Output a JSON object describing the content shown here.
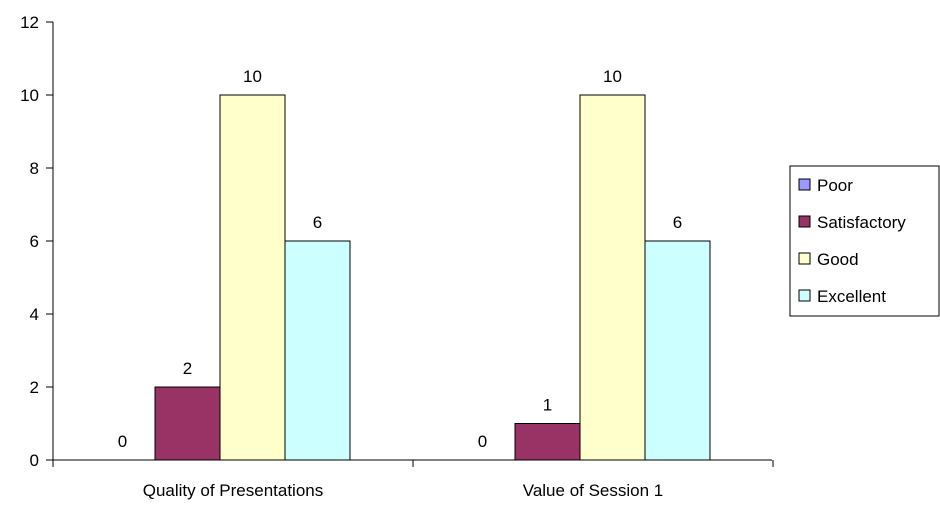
{
  "chart_data": {
    "type": "bar",
    "categories": [
      "Quality of Presentations",
      "Value of Session 1"
    ],
    "series": [
      {
        "name": "Poor",
        "values": [
          0,
          0
        ],
        "color": "#9999FF"
      },
      {
        "name": "Satisfactory",
        "values": [
          2,
          1
        ],
        "color": "#993366"
      },
      {
        "name": "Good",
        "values": [
          10,
          10
        ],
        "color": "#FFFFCC"
      },
      {
        "name": "Excellent",
        "values": [
          6,
          6
        ],
        "color": "#CCFFFF"
      }
    ],
    "title": "",
    "xlabel": "",
    "ylabel": "",
    "ylim": [
      0,
      12
    ],
    "yticks": [
      0,
      2,
      4,
      6,
      8,
      10,
      12
    ],
    "grid": false,
    "data_labels": true,
    "legend_position": "right"
  }
}
